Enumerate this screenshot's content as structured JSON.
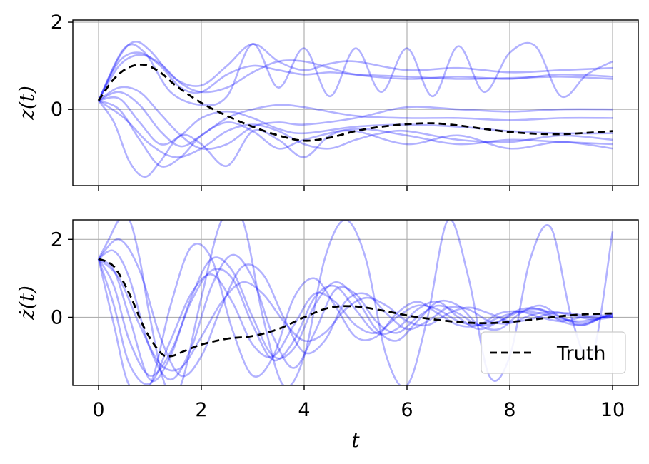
{
  "chart_data": [
    {
      "type": "line",
      "ylabel": "z(t)",
      "xlim": [
        -0.5,
        10.5
      ],
      "ylim": [
        -1.75,
        2.05
      ],
      "xticks": [
        0,
        2,
        4,
        6,
        8,
        10
      ],
      "show_xtick_labels": false,
      "yticks": [
        {
          "value": 0,
          "label": "0"
        },
        {
          "value": 2,
          "label": "2"
        }
      ],
      "grid": true,
      "sample_color": "#0000ff",
      "samples": [
        {
          "x": [
            0,
            0.4,
            0.7,
            1.0,
            1.5,
            2.0,
            2.5,
            3.0,
            3.5,
            4.0,
            4.5,
            5.0,
            6.0,
            7.0,
            8.0,
            9.0,
            10.0
          ],
          "y": [
            0.2,
            1.2,
            1.55,
            1.35,
            0.7,
            0.55,
            1.0,
            1.5,
            1.1,
            0.9,
            1.05,
            1.1,
            0.9,
            0.95,
            0.85,
            0.9,
            0.95
          ]
        },
        {
          "x": [
            0,
            0.4,
            0.8,
            1.2,
            1.6,
            2.0,
            2.5,
            3.0,
            3.5,
            4.0,
            4.5,
            5.0,
            6.0,
            7.0,
            8.0,
            9.0,
            10.0
          ],
          "y": [
            0.2,
            1.1,
            1.3,
            1.0,
            0.5,
            0.4,
            0.8,
            1.0,
            0.9,
            0.8,
            0.85,
            0.8,
            0.75,
            0.7,
            0.72,
            0.75,
            0.7
          ]
        },
        {
          "x": [
            0,
            0.5,
            0.9,
            1.4,
            2.0,
            2.5,
            3.0,
            3.5,
            4.0,
            4.5,
            5.0,
            5.5,
            6.0,
            6.5,
            7.0,
            7.5,
            8.0,
            8.5,
            9.0,
            9.5,
            10.0
          ],
          "y": [
            0.2,
            1.4,
            1.3,
            0.4,
            0.1,
            0.3,
            1.5,
            0.5,
            1.4,
            0.3,
            1.4,
            0.4,
            1.4,
            0.3,
            1.45,
            0.4,
            1.3,
            1.45,
            0.3,
            0.8,
            1.1
          ]
        },
        {
          "x": [
            0,
            0.4,
            0.8,
            1.2,
            1.6,
            2.0,
            2.5,
            3.0,
            3.5,
            4.0,
            4.5,
            5.0,
            6.0,
            7.0,
            8.0,
            9.0,
            10.0
          ],
          "y": [
            0.2,
            1.0,
            1.25,
            1.05,
            0.6,
            0.4,
            0.5,
            0.85,
            1.1,
            1.1,
            0.95,
            0.8,
            0.7,
            0.75,
            0.7,
            0.8,
            0.75
          ]
        },
        {
          "x": [
            0,
            0.4,
            0.8,
            1.2,
            1.6,
            2.0,
            2.5,
            3.0,
            3.5,
            4.0,
            5.0,
            6.0,
            7.0,
            8.0,
            9.0,
            10.0
          ],
          "y": [
            0.2,
            0.5,
            0.4,
            -0.1,
            -0.6,
            -0.9,
            -0.8,
            -0.4,
            -0.3,
            -0.35,
            -0.2,
            0.05,
            0.0,
            -0.05,
            0.0,
            0.0
          ]
        },
        {
          "x": [
            0,
            0.4,
            0.8,
            1.2,
            1.6,
            2.0,
            2.5,
            3.0,
            3.5,
            4.0,
            5.0,
            6.0,
            7.0,
            8.0,
            9.0,
            10.0
          ],
          "y": [
            0.2,
            0.4,
            0.1,
            -0.5,
            -0.85,
            -0.6,
            -0.2,
            0.0,
            0.1,
            0.05,
            -0.15,
            -0.2,
            -0.2,
            -0.25,
            -0.2,
            -0.2
          ]
        },
        {
          "x": [
            0,
            0.4,
            0.8,
            1.2,
            1.6,
            2.0,
            2.5,
            3.0,
            3.5,
            4.0,
            5.0,
            6.0,
            7.0,
            8.0,
            9.0,
            10.0
          ],
          "y": [
            0.2,
            0.25,
            -0.3,
            -0.8,
            -0.6,
            -0.2,
            -0.05,
            -0.2,
            -0.45,
            -0.55,
            -0.4,
            -0.35,
            -0.4,
            -0.5,
            -0.55,
            -0.55
          ]
        },
        {
          "x": [
            0,
            0.4,
            0.8,
            1.2,
            1.6,
            2.0,
            2.5,
            3.0,
            3.5,
            4.0,
            5.0,
            6.0,
            7.0,
            8.0,
            9.0,
            10.0
          ],
          "y": [
            0.2,
            0.0,
            -0.7,
            -1.3,
            -1.1,
            -0.6,
            -0.3,
            -0.5,
            -0.9,
            -0.7,
            -0.45,
            -0.6,
            -0.8,
            -0.7,
            -0.75,
            -0.8
          ]
        },
        {
          "x": [
            0,
            0.3,
            0.6,
            0.9,
            1.2,
            1.6,
            2.0,
            2.5,
            3.0,
            3.5,
            4.0,
            4.5,
            5.0,
            6.0,
            7.0,
            8.0,
            9.0,
            10.0
          ],
          "y": [
            0.2,
            -0.3,
            -1.2,
            -1.55,
            -1.2,
            -0.6,
            -0.8,
            -1.3,
            -0.5,
            -0.7,
            -1.1,
            -0.6,
            -0.5,
            -0.8,
            -0.6,
            -0.9,
            -0.75,
            -0.9
          ]
        },
        {
          "x": [
            0,
            0.5,
            1.0,
            1.5,
            2.0,
            2.5,
            3.0,
            3.5,
            4.0,
            4.5,
            5.0,
            5.5,
            6.0,
            7.0,
            8.0,
            9.0,
            10.0
          ],
          "y": [
            0.2,
            -0.2,
            -0.8,
            -1.1,
            -0.9,
            -0.5,
            -0.35,
            -0.5,
            -0.8,
            -0.9,
            -0.7,
            -0.55,
            -0.5,
            -0.7,
            -0.75,
            -0.6,
            -0.7
          ]
        }
      ],
      "truth": {
        "x": [
          0,
          0.3,
          0.6,
          0.9,
          1.2,
          1.5,
          2.0,
          2.5,
          3.0,
          3.5,
          4.0,
          4.5,
          5.0,
          5.5,
          6.0,
          6.5,
          7.0,
          7.5,
          8.0,
          8.5,
          9.0,
          9.5,
          10.0
        ],
        "y": [
          0.2,
          0.7,
          0.97,
          1.02,
          0.85,
          0.55,
          0.15,
          -0.15,
          -0.4,
          -0.6,
          -0.72,
          -0.65,
          -0.5,
          -0.4,
          -0.34,
          -0.32,
          -0.37,
          -0.45,
          -0.52,
          -0.56,
          -0.57,
          -0.54,
          -0.5
        ]
      }
    },
    {
      "type": "line",
      "xlabel": "t",
      "ylabel": "ż(t)",
      "xlim": [
        -0.5,
        10.5
      ],
      "ylim": [
        -1.75,
        2.5
      ],
      "xticks": [
        0,
        2,
        4,
        6,
        8,
        10
      ],
      "show_xtick_labels": true,
      "xtick_labels": [
        "0",
        "2",
        "4",
        "6",
        "8",
        "10"
      ],
      "yticks": [
        {
          "value": 0,
          "label": "0"
        },
        {
          "value": 2,
          "label": "2"
        }
      ],
      "grid": true,
      "sample_color": "#0000ff",
      "samples": [
        {
          "x": [
            0,
            0.2,
            0.4,
            0.6,
            0.8,
            1.0,
            1.3,
            1.6,
            2.0,
            2.4,
            2.8,
            3.2,
            3.6,
            4.0,
            4.4,
            4.8,
            5.2,
            5.6,
            6.0,
            6.4,
            6.8,
            7.2,
            7.6,
            8.0,
            8.4,
            8.8,
            9.2,
            9.6,
            10.0
          ],
          "y": [
            1.5,
            2.0,
            2.5,
            2.5,
            1.5,
            0.0,
            -1.75,
            -1.75,
            0.5,
            2.5,
            2.5,
            0.0,
            -1.75,
            -1.0,
            1.5,
            2.5,
            1.5,
            -1.0,
            -1.75,
            0.0,
            2.5,
            1.0,
            -1.5,
            -1.0,
            1.5,
            2.3,
            0.0,
            -1.0,
            2.2
          ]
        },
        {
          "x": [
            0,
            0.3,
            0.6,
            1.0,
            1.4,
            1.8,
            2.2,
            2.6,
            3.0,
            3.4,
            3.8,
            4.2,
            4.6,
            5.0,
            5.4,
            5.8,
            6.2,
            6.6,
            7.0,
            7.4,
            7.8,
            8.2,
            8.6,
            9.0,
            9.4,
            9.8,
            10.0
          ],
          "y": [
            1.5,
            1.2,
            0.0,
            -1.6,
            -1.0,
            0.5,
            1.5,
            1.2,
            0.0,
            -1.0,
            -0.8,
            0.3,
            0.9,
            0.5,
            -0.3,
            -0.6,
            -0.1,
            0.4,
            0.3,
            -0.2,
            -0.3,
            0.1,
            0.3,
            0.0,
            -0.2,
            0.0,
            0.1
          ]
        },
        {
          "x": [
            0,
            0.3,
            0.6,
            1.0,
            1.4,
            1.8,
            2.2,
            2.6,
            3.0,
            3.4,
            3.8,
            4.2,
            4.6,
            5.0,
            5.4,
            5.8,
            6.2,
            6.6,
            7.0,
            7.4,
            7.8,
            8.2,
            8.6,
            9.0,
            9.4,
            9.8,
            10.0
          ],
          "y": [
            1.5,
            0.8,
            -0.6,
            -1.5,
            -0.9,
            0.4,
            1.2,
            1.0,
            -0.2,
            -1.1,
            -0.6,
            0.5,
            0.8,
            0.2,
            -0.4,
            -0.3,
            0.2,
            0.4,
            0.0,
            -0.3,
            -0.1,
            0.2,
            0.2,
            -0.1,
            -0.2,
            0.0,
            0.05
          ]
        },
        {
          "x": [
            0,
            0.3,
            0.6,
            1.0,
            1.4,
            1.8,
            2.2,
            2.6,
            3.0,
            3.4,
            3.8,
            4.2,
            4.6,
            5.0,
            5.4,
            5.8,
            6.2,
            6.6,
            7.0,
            7.4,
            7.8,
            8.2,
            8.6,
            9.0,
            9.4,
            9.8,
            10.0
          ],
          "y": [
            1.5,
            1.7,
            1.0,
            -0.8,
            -1.6,
            -0.8,
            0.8,
            1.6,
            1.0,
            -0.5,
            -1.3,
            -0.4,
            0.7,
            0.6,
            -0.1,
            -0.4,
            0.0,
            0.3,
            0.1,
            -0.2,
            -0.1,
            0.15,
            0.2,
            0.0,
            -0.15,
            0.0,
            0.1
          ]
        },
        {
          "x": [
            0,
            0.3,
            0.6,
            1.0,
            1.4,
            1.8,
            2.2,
            2.6,
            3.0,
            3.4,
            3.8,
            4.2,
            4.6,
            5.0,
            5.4,
            5.8,
            6.2,
            6.6,
            7.0,
            7.4,
            7.8,
            8.2,
            8.6,
            9.0,
            9.4,
            9.8,
            10.0
          ],
          "y": [
            1.5,
            0.3,
            -1.2,
            -1.7,
            -0.6,
            0.6,
            1.1,
            0.4,
            -0.7,
            -1.0,
            -0.2,
            0.6,
            0.4,
            -0.2,
            -0.4,
            0.0,
            0.3,
            0.2,
            -0.1,
            -0.2,
            0.0,
            0.15,
            0.1,
            -0.05,
            -0.1,
            0.0,
            0.05
          ]
        },
        {
          "x": [
            0,
            0.4,
            0.8,
            1.2,
            1.6,
            2.0,
            2.4,
            2.8,
            3.2,
            3.6,
            4.0,
            4.4,
            4.8,
            5.2,
            5.6,
            6.0,
            6.4,
            6.8,
            7.2,
            7.6,
            8.0,
            8.4,
            8.8,
            9.2,
            9.6,
            10.0
          ],
          "y": [
            1.5,
            1.0,
            -0.2,
            -1.2,
            -1.3,
            -0.5,
            0.4,
            0.9,
            0.6,
            -0.1,
            -0.6,
            -0.4,
            0.2,
            0.5,
            0.3,
            -0.1,
            -0.2,
            0.1,
            0.25,
            0.1,
            -0.1,
            -0.05,
            0.1,
            0.1,
            0.0,
            0.0
          ]
        },
        {
          "x": [
            0,
            0.3,
            0.6,
            1.0,
            1.4,
            1.8,
            2.2,
            2.6,
            3.0,
            3.4,
            3.8,
            4.2,
            4.6,
            5.0,
            5.4,
            5.8,
            6.2,
            6.6,
            7.0,
            7.4,
            7.8,
            8.2,
            8.6,
            9.0,
            9.4,
            9.8,
            10.0
          ],
          "y": [
            1.5,
            -0.2,
            -1.75,
            -1.75,
            0.3,
            1.8,
            1.5,
            -0.3,
            -1.5,
            -1.0,
            0.5,
            1.0,
            0.3,
            -0.5,
            -0.5,
            0.1,
            0.4,
            0.1,
            -0.2,
            -0.2,
            0.1,
            0.15,
            0.0,
            -0.1,
            0.0,
            0.05,
            0.0
          ]
        },
        {
          "x": [
            0,
            0.4,
            0.8,
            1.2,
            1.6,
            2.0,
            2.4,
            2.8,
            3.2,
            3.6,
            4.0,
            4.4,
            4.8,
            5.2,
            5.6,
            6.0,
            6.4,
            6.8,
            7.2,
            7.6,
            8.0,
            8.4,
            8.8,
            9.2,
            9.6,
            10.0
          ],
          "y": [
            1.5,
            2.0,
            1.2,
            -0.5,
            -1.5,
            -1.0,
            0.3,
            1.3,
            1.1,
            0.0,
            -0.9,
            -0.6,
            0.4,
            0.6,
            0.1,
            -0.3,
            -0.1,
            0.25,
            0.2,
            -0.1,
            -0.15,
            0.05,
            0.15,
            0.05,
            -0.05,
            0.0
          ]
        }
      ],
      "truth": {
        "x": [
          0,
          0.3,
          0.6,
          0.9,
          1.2,
          1.4,
          1.7,
          2.0,
          2.5,
          3.0,
          3.5,
          4.0,
          4.5,
          5.0,
          5.5,
          6.0,
          6.5,
          7.0,
          7.5,
          8.0,
          8.5,
          9.0,
          9.5,
          10.0
        ],
        "y": [
          1.5,
          1.3,
          0.6,
          -0.3,
          -0.9,
          -1.0,
          -0.85,
          -0.7,
          -0.55,
          -0.48,
          -0.3,
          0.0,
          0.25,
          0.28,
          0.18,
          0.05,
          -0.05,
          -0.12,
          -0.15,
          -0.12,
          -0.05,
          0.03,
          0.08,
          0.1
        ]
      },
      "legend": {
        "label": "Truth",
        "placement": "bottom-right"
      }
    }
  ]
}
